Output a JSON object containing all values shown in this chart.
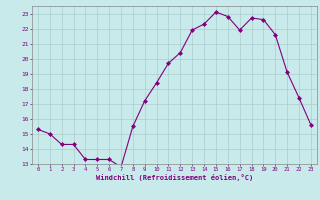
{
  "x": [
    0,
    1,
    2,
    3,
    4,
    5,
    6,
    7,
    8,
    9,
    10,
    11,
    12,
    13,
    14,
    15,
    16,
    17,
    18,
    19,
    20,
    21,
    22,
    23
  ],
  "y": [
    15.3,
    15.0,
    14.3,
    14.3,
    13.3,
    13.3,
    13.3,
    12.8,
    15.5,
    17.2,
    18.4,
    19.7,
    20.4,
    21.9,
    22.3,
    23.1,
    22.8,
    21.9,
    22.7,
    22.6,
    21.6,
    19.1,
    17.4,
    15.6
  ],
  "line_color": "#800080",
  "marker": "D",
  "marker_size": 2,
  "bg_color": "#c8eaea",
  "grid_color": "#aacccc",
  "xlabel": "Windchill (Refroidissement éolien,°C)",
  "tick_color": "#800080",
  "ylim": [
    13,
    23.5
  ],
  "yticks": [
    13,
    14,
    15,
    16,
    17,
    18,
    19,
    20,
    21,
    22,
    23
  ],
  "xlim": [
    -0.5,
    23.5
  ],
  "xticks": [
    0,
    1,
    2,
    3,
    4,
    5,
    6,
    7,
    8,
    9,
    10,
    11,
    12,
    13,
    14,
    15,
    16,
    17,
    18,
    19,
    20,
    21,
    22,
    23
  ]
}
